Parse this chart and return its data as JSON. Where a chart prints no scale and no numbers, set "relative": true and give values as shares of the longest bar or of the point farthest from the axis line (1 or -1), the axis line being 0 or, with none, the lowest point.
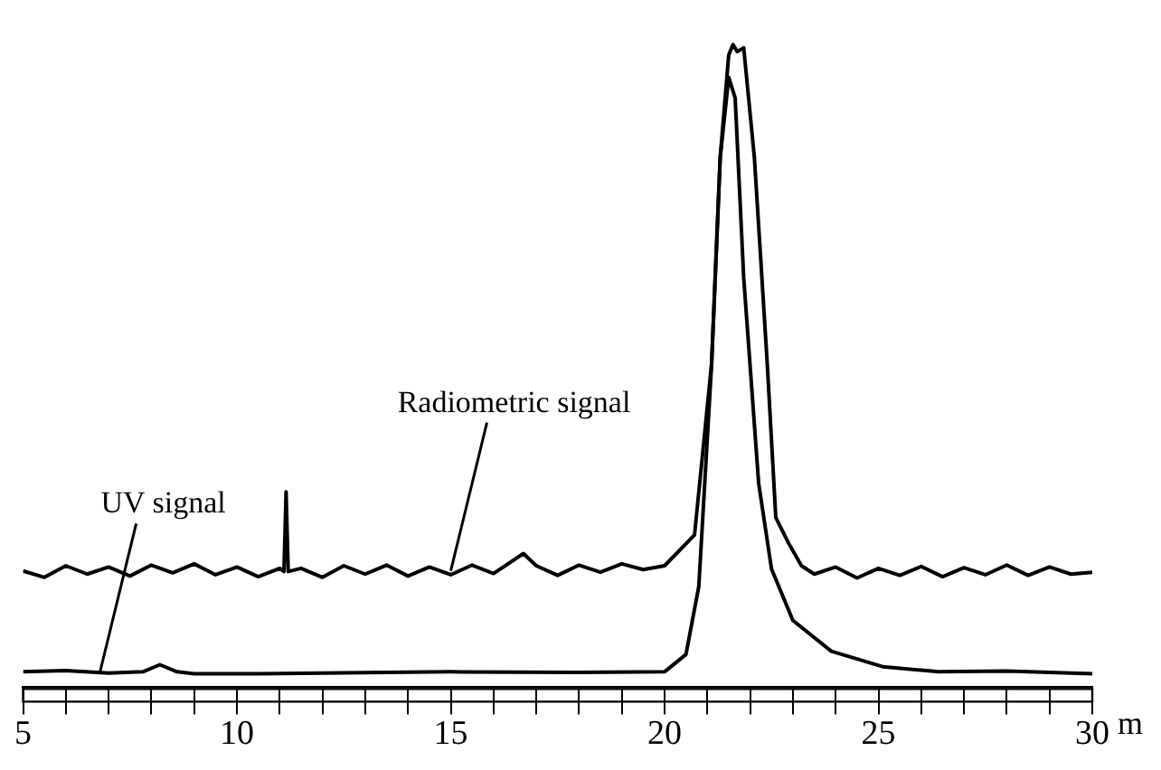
{
  "chart_data": {
    "type": "line",
    "relative": true,
    "xlabel": "m",
    "xlim": [
      5,
      30
    ],
    "xticks": [
      5,
      {
        "value": 6,
        "label": null
      },
      {
        "value": 7,
        "label": null
      },
      {
        "value": 8,
        "label": null
      },
      {
        "value": 9,
        "label": null
      },
      10,
      {
        "value": 11,
        "label": null
      },
      {
        "value": 12,
        "label": null
      },
      {
        "value": 13,
        "label": null
      },
      {
        "value": 14,
        "label": null
      },
      15,
      {
        "value": 16,
        "label": null
      },
      {
        "value": 17,
        "label": null
      },
      {
        "value": 18,
        "label": null
      },
      {
        "value": 19,
        "label": null
      },
      20,
      {
        "value": 21,
        "label": null
      },
      {
        "value": 22,
        "label": null
      },
      {
        "value": 23,
        "label": null
      },
      {
        "value": 24,
        "label": null
      },
      25,
      {
        "value": 26,
        "label": null
      },
      {
        "value": 27,
        "label": null
      },
      {
        "value": 28,
        "label": null
      },
      {
        "value": 29,
        "label": null
      },
      30
    ],
    "grid": false,
    "legend": false,
    "marker": "none",
    "line_style": "solid",
    "annotations": [
      {
        "text": "UV signal",
        "x": 6.8,
        "y": 0.024
      },
      {
        "text": "Radiometric signal",
        "x": 15,
        "y": 0.181
      }
    ],
    "series": [
      {
        "color": "#000000",
        "x": [
          5,
          5.5,
          6,
          6.5,
          7,
          7.5,
          8,
          8.5,
          9,
          9.5,
          10,
          10.5,
          11,
          11.1,
          11.15,
          11.2,
          11.5,
          12,
          12.5,
          13,
          13.5,
          14,
          14.5,
          15,
          15.5,
          16,
          16.7,
          17,
          17.5,
          18,
          18.5,
          19,
          19.5,
          20,
          20.7,
          21.1,
          21.3,
          21.5,
          21.6,
          21.7,
          21.85,
          22.1,
          22.4,
          22.6,
          22.9,
          23.2,
          23.5,
          24,
          24.5,
          25,
          25.5,
          26,
          26.5,
          27,
          27.5,
          28,
          28.5,
          29,
          29.5,
          30
        ],
        "values": [
          0.181,
          0.171,
          0.189,
          0.176,
          0.187,
          0.173,
          0.19,
          0.178,
          0.192,
          0.175,
          0.187,
          0.172,
          0.185,
          0.18,
          0.304,
          0.18,
          0.185,
          0.171,
          0.189,
          0.176,
          0.19,
          0.173,
          0.187,
          0.175,
          0.19,
          0.177,
          0.208,
          0.189,
          0.174,
          0.19,
          0.179,
          0.192,
          0.183,
          0.189,
          0.237,
          0.504,
          0.824,
          0.984,
          1,
          0.989,
          0.995,
          0.824,
          0.504,
          0.264,
          0.224,
          0.189,
          0.176,
          0.187,
          0.17,
          0.185,
          0.174,
          0.188,
          0.172,
          0.186,
          0.175,
          0.19,
          0.174,
          0.187,
          0.176,
          0.179
        ]
      },
      {
        "color": "#000000",
        "x": [
          5,
          6,
          7,
          7.8,
          8.2,
          8.6,
          9,
          10.5,
          12,
          15,
          18,
          20,
          20.5,
          20.8,
          21.1,
          21.3,
          21.5,
          21.65,
          21.85,
          22.2,
          22.5,
          23,
          23.9,
          25.1,
          26.4,
          28,
          30
        ],
        "values": [
          0.024,
          0.026,
          0.022,
          0.024,
          0.035,
          0.024,
          0.021,
          0.021,
          0.022,
          0.024,
          0.023,
          0.024,
          0.051,
          0.157,
          0.504,
          0.824,
          0.949,
          0.917,
          0.637,
          0.317,
          0.184,
          0.104,
          0.056,
          0.032,
          0.024,
          0.025,
          0.021
        ]
      }
    ]
  }
}
